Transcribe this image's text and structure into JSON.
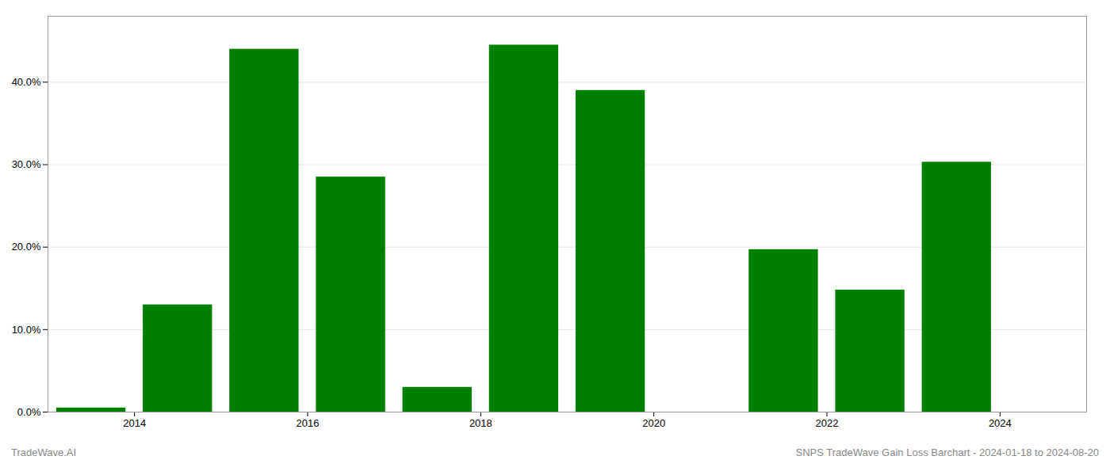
{
  "chart_data": {
    "type": "bar",
    "x": [
      2013.5,
      2014.5,
      2015.5,
      2016.5,
      2017.5,
      2018.5,
      2019.5,
      2020.5,
      2021.5,
      2022.5,
      2023.5
    ],
    "values": [
      0.005,
      0.13,
      0.44,
      0.285,
      0.03,
      0.445,
      0.39,
      0.0,
      0.197,
      0.148,
      0.303
    ],
    "color": "#008000",
    "xlim": [
      2013.0,
      2025.0
    ],
    "xticks": [
      2014,
      2016,
      2018,
      2020,
      2022,
      2024
    ],
    "ylim": [
      0,
      0.48
    ],
    "yticks": [
      {
        "value": 0.0,
        "label": "0.0%"
      },
      {
        "value": 0.1,
        "label": "10.0%"
      },
      {
        "value": 0.2,
        "label": "20.0%"
      },
      {
        "value": 0.3,
        "label": "30.0%"
      },
      {
        "value": 0.4,
        "label": "40.0%"
      }
    ],
    "grid": true,
    "annotations": [
      "TradeWave.AI",
      "SNPS TradeWave Gain Loss Barchart - 2024-01-18 to 2024-08-20"
    ]
  }
}
